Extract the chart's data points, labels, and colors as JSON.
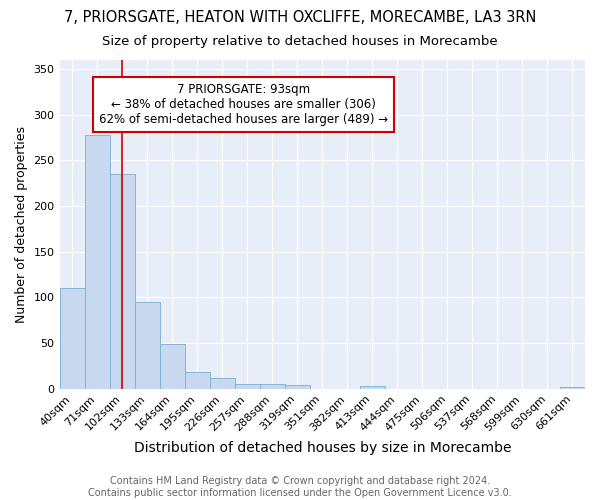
{
  "title1": "7, PRIORSGATE, HEATON WITH OXCLIFFE, MORECAMBE, LA3 3RN",
  "title2": "Size of property relative to detached houses in Morecambe",
  "xlabel": "Distribution of detached houses by size in Morecambe",
  "ylabel": "Number of detached properties",
  "categories": [
    "40sqm",
    "71sqm",
    "102sqm",
    "133sqm",
    "164sqm",
    "195sqm",
    "226sqm",
    "257sqm",
    "288sqm",
    "319sqm",
    "351sqm",
    "382sqm",
    "413sqm",
    "444sqm",
    "475sqm",
    "506sqm",
    "537sqm",
    "568sqm",
    "599sqm",
    "630sqm",
    "661sqm"
  ],
  "values": [
    110,
    278,
    235,
    95,
    49,
    18,
    12,
    5,
    5,
    4,
    0,
    0,
    3,
    0,
    0,
    0,
    0,
    0,
    0,
    0,
    2
  ],
  "bar_color": "#c8d8ef",
  "bar_edge_color": "#7aadd4",
  "vline_x": 2.0,
  "vline_color": "#cc0000",
  "annotation_text": "7 PRIORSGATE: 93sqm\n← 38% of detached houses are smaller (306)\n62% of semi-detached houses are larger (489) →",
  "annotation_box_color": "#ffffff",
  "annotation_box_edge": "#cc0000",
  "ylim": [
    0,
    360
  ],
  "yticks": [
    0,
    50,
    100,
    150,
    200,
    250,
    300,
    350
  ],
  "footnote": "Contains HM Land Registry data © Crown copyright and database right 2024.\nContains public sector information licensed under the Open Government Licence v3.0.",
  "bg_color": "#ffffff",
  "plot_bg_color": "#e8eef8",
  "grid_color": "#ffffff",
  "title1_fontsize": 10.5,
  "title2_fontsize": 9.5,
  "xlabel_fontsize": 10,
  "ylabel_fontsize": 9,
  "tick_fontsize": 8,
  "footnote_fontsize": 7,
  "ann_fontsize": 8.5
}
